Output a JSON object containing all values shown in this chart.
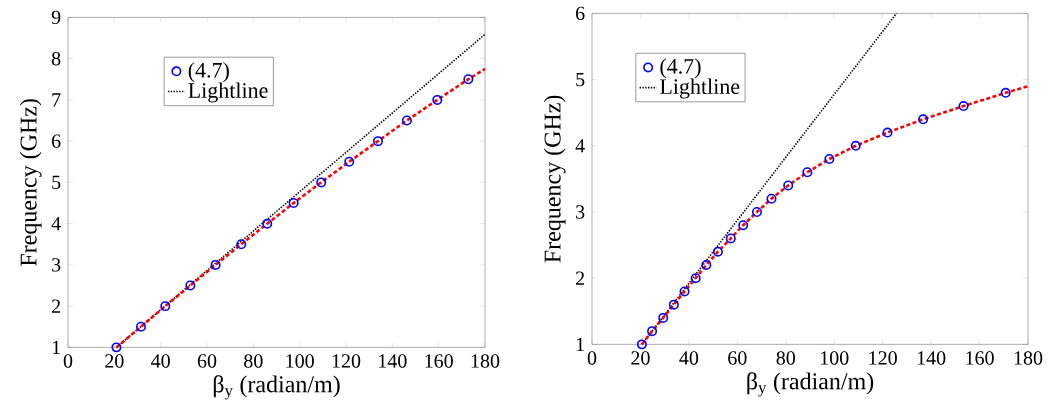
{
  "chart_data": [
    {
      "type": "scatter",
      "xlabel": "β$_{y}$ (radian/m)",
      "ylabel": "Frequency (GHz)",
      "xlim": [
        0,
        180
      ],
      "ylim": [
        1,
        9
      ],
      "xticks": [
        0,
        20,
        40,
        60,
        80,
        100,
        120,
        140,
        160,
        180
      ],
      "yticks": [
        1,
        2,
        3,
        4,
        5,
        6,
        7,
        8,
        9
      ],
      "legend": "top",
      "grid": false,
      "series": [
        {
          "name": "(4.7)",
          "marker": "circle",
          "color": "#0000ff",
          "x": [
            20.9,
            31.5,
            42,
            52.8,
            63.7,
            74.8,
            86,
            97.4,
            109.3,
            121.4,
            133.8,
            146.3,
            159.4,
            172.8
          ],
          "values": [
            1,
            1.5,
            2,
            2.5,
            3,
            3.5,
            4,
            4.5,
            5,
            5.5,
            6,
            6.5,
            7,
            7.5
          ]
        },
        {
          "name": "Lightline",
          "type": "line",
          "line_style": "dotted",
          "color": "#000000",
          "x": [
            20.9,
            180
          ],
          "values": [
            1,
            8.59
          ]
        },
        {
          "type": "line",
          "line_style": "dashed",
          "color": "#ff0000",
          "x": [
            20.9,
            31.5,
            42,
            52.8,
            63.7,
            74.8,
            86,
            97.4,
            109.3,
            121.4,
            133.8,
            146.3,
            159.4,
            172.8,
            180
          ],
          "values": [
            1,
            1.5,
            2,
            2.5,
            3,
            3.5,
            4,
            4.5,
            5,
            5.5,
            6,
            6.5,
            7,
            7.5,
            7.75
          ]
        }
      ]
    },
    {
      "type": "scatter",
      "xlabel": "β$_{y}$ (radian/m)",
      "ylabel": "Frequency (GHz)",
      "xlim": [
        0,
        180
      ],
      "ylim": [
        1,
        6
      ],
      "xticks": [
        0,
        20,
        40,
        60,
        80,
        100,
        120,
        140,
        160,
        180
      ],
      "yticks": [
        1,
        2,
        3,
        4,
        5,
        6
      ],
      "legend": "top left",
      "grid": false,
      "series": [
        {
          "name": "(4.7)",
          "marker": "circle",
          "color": "#0000ff",
          "x": [
            20.6,
            24.8,
            29.4,
            33.8,
            38.2,
            42.8,
            47.2,
            52,
            57.3,
            62.4,
            68.1,
            74.1,
            81,
            88.9,
            98,
            108.9,
            122,
            136.7,
            153.4,
            170.8
          ],
          "values": [
            1,
            1.2,
            1.4,
            1.6,
            1.8,
            2,
            2.2,
            2.4,
            2.6,
            2.8,
            3,
            3.2,
            3.4,
            3.6,
            3.8,
            4,
            4.2,
            4.4,
            4.6,
            4.8
          ]
        },
        {
          "name": "Lightline",
          "type": "line",
          "line_style": "dotted",
          "color": "#000000",
          "x": [
            20.6,
            125.7
          ],
          "values": [
            1,
            6
          ]
        },
        {
          "type": "line",
          "line_style": "dashed",
          "color": "#ff0000",
          "x": [
            20.6,
            24.8,
            29.4,
            33.8,
            38.2,
            42.8,
            47.2,
            52,
            57.3,
            62.4,
            68.1,
            74.1,
            81,
            88.9,
            98,
            108.9,
            122,
            136.7,
            153.4,
            170.8,
            180
          ],
          "values": [
            1,
            1.2,
            1.4,
            1.6,
            1.8,
            2,
            2.2,
            2.4,
            2.6,
            2.8,
            3,
            3.2,
            3.4,
            3.6,
            3.8,
            4,
            4.2,
            4.4,
            4.6,
            4.8,
            4.9
          ]
        }
      ]
    }
  ]
}
